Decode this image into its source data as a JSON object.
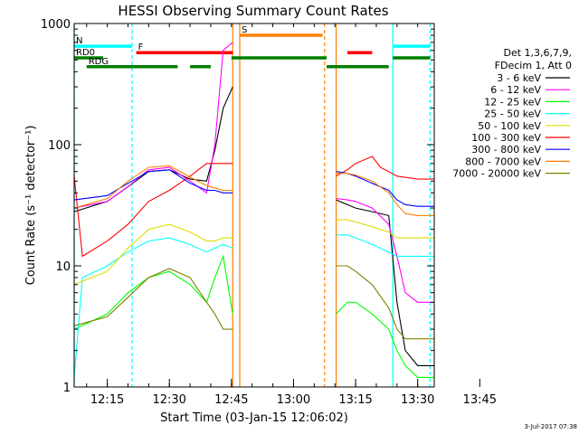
{
  "chart_data": {
    "type": "line",
    "title": "HESSI Observing Summary Count Rates",
    "xlabel": "Start Time (03-Jan-15 12:06:02)",
    "ylabel": "Count Rate (s⁻¹ detector⁻¹)",
    "yscale": "log",
    "ylim": [
      1,
      1000
    ],
    "xlim_minutes": [
      12.0,
      99.0
    ],
    "x_ticks": [
      {
        "m": 20,
        "label": "12:15"
      },
      {
        "m": 35,
        "label": "12:30"
      },
      {
        "m": 50,
        "label": "12:45"
      },
      {
        "m": 65,
        "label": "13:00"
      },
      {
        "m": 80,
        "label": "13:15"
      },
      {
        "m": 95,
        "label": "13:30"
      },
      {
        "m": 110,
        "label": "13:45"
      }
    ],
    "y_ticks": [
      {
        "v": 1,
        "label": "1"
      },
      {
        "v": 10,
        "label": "10"
      },
      {
        "v": 100,
        "label": "100"
      },
      {
        "v": 1000,
        "label": "1000"
      }
    ],
    "legend_header": [
      "Det 1,3,6,7,9,",
      "FDecim 1, Att 0"
    ],
    "timestamp": "3-Jul-2017 07:38",
    "gap_minutes": [
      50.3,
      75.3
    ],
    "series": [
      {
        "name": "3 - 6 keV",
        "color": "#000000",
        "points": [
          [
            12,
            28
          ],
          [
            20,
            34
          ],
          [
            25,
            45
          ],
          [
            30,
            60
          ],
          [
            35,
            62
          ],
          [
            40,
            52
          ],
          [
            44,
            50
          ],
          [
            46,
            90
          ],
          [
            48,
            200
          ],
          [
            50.3,
            300
          ],
          [
            75.3,
            35
          ],
          [
            78,
            32
          ],
          [
            80,
            30
          ],
          [
            84,
            28
          ],
          [
            88,
            26
          ],
          [
            90,
            5
          ],
          [
            92,
            2
          ],
          [
            95,
            1.5
          ],
          [
            99,
            1.5
          ]
        ]
      },
      {
        "name": "6 - 12 keV",
        "color": "#ff00ff",
        "points": [
          [
            12,
            30
          ],
          [
            20,
            34
          ],
          [
            25,
            45
          ],
          [
            30,
            62
          ],
          [
            35,
            65
          ],
          [
            40,
            50
          ],
          [
            44,
            40
          ],
          [
            46,
            100
          ],
          [
            48,
            600
          ],
          [
            50.3,
            700
          ],
          [
            75.3,
            36
          ],
          [
            78,
            35
          ],
          [
            80,
            34
          ],
          [
            84,
            30
          ],
          [
            88,
            22
          ],
          [
            90,
            12
          ],
          [
            92,
            6
          ],
          [
            95,
            5
          ],
          [
            99,
            5
          ]
        ]
      },
      {
        "name": "12 - 25 keV",
        "color": "#00ff00",
        "points": [
          [
            12,
            3
          ],
          [
            20,
            4
          ],
          [
            25,
            6
          ],
          [
            30,
            8
          ],
          [
            35,
            9
          ],
          [
            40,
            7
          ],
          [
            44,
            5
          ],
          [
            46,
            8
          ],
          [
            48,
            12
          ],
          [
            50.3,
            4
          ],
          [
            75.3,
            4
          ],
          [
            78,
            5
          ],
          [
            80,
            5
          ],
          [
            84,
            4
          ],
          [
            88,
            3
          ],
          [
            90,
            2
          ],
          [
            92,
            1.5
          ],
          [
            95,
            1.2
          ],
          [
            99,
            1.2
          ]
        ]
      },
      {
        "name": "25 - 50 keV",
        "color": "#00ffff",
        "points": [
          [
            12,
            1.2
          ],
          [
            14,
            8
          ],
          [
            20,
            10
          ],
          [
            25,
            13
          ],
          [
            30,
            16
          ],
          [
            35,
            17
          ],
          [
            40,
            15
          ],
          [
            44,
            13
          ],
          [
            46,
            14
          ],
          [
            48,
            15
          ],
          [
            50.3,
            14
          ],
          [
            75.3,
            18
          ],
          [
            78,
            18
          ],
          [
            80,
            17
          ],
          [
            84,
            15
          ],
          [
            88,
            13
          ],
          [
            90,
            12
          ],
          [
            92,
            12
          ],
          [
            95,
            12
          ],
          [
            99,
            12
          ]
        ]
      },
      {
        "name": "50 - 100 keV",
        "color": "#dddd00",
        "points": [
          [
            12,
            7
          ],
          [
            20,
            9
          ],
          [
            25,
            14
          ],
          [
            30,
            20
          ],
          [
            35,
            22
          ],
          [
            40,
            19
          ],
          [
            44,
            16
          ],
          [
            46,
            16
          ],
          [
            48,
            17
          ],
          [
            50.3,
            17
          ],
          [
            75.3,
            24
          ],
          [
            78,
            24
          ],
          [
            80,
            23
          ],
          [
            84,
            21
          ],
          [
            88,
            19
          ],
          [
            90,
            17
          ],
          [
            92,
            17
          ],
          [
            95,
            17
          ],
          [
            99,
            17
          ]
        ]
      },
      {
        "name": "100 - 300 keV",
        "color": "#ff0000",
        "points": [
          [
            12,
            55
          ],
          [
            14,
            12
          ],
          [
            20,
            16
          ],
          [
            25,
            22
          ],
          [
            30,
            34
          ],
          [
            35,
            42
          ],
          [
            40,
            55
          ],
          [
            44,
            70
          ],
          [
            46,
            70
          ],
          [
            48,
            70
          ],
          [
            50.3,
            70
          ],
          [
            75.3,
            55
          ],
          [
            78,
            62
          ],
          [
            80,
            70
          ],
          [
            84,
            80
          ],
          [
            86,
            65
          ],
          [
            88,
            60
          ],
          [
            90,
            55
          ],
          [
            95,
            52
          ],
          [
            99,
            52
          ]
        ]
      },
      {
        "name": "300 - 800 keV",
        "color": "#0000ff",
        "points": [
          [
            12,
            35
          ],
          [
            20,
            38
          ],
          [
            25,
            48
          ],
          [
            30,
            60
          ],
          [
            35,
            62
          ],
          [
            40,
            48
          ],
          [
            44,
            42
          ],
          [
            46,
            42
          ],
          [
            48,
            40
          ],
          [
            50.3,
            40
          ],
          [
            75.3,
            60
          ],
          [
            78,
            58
          ],
          [
            80,
            55
          ],
          [
            84,
            48
          ],
          [
            88,
            42
          ],
          [
            90,
            35
          ],
          [
            92,
            32
          ],
          [
            95,
            31
          ],
          [
            99,
            31
          ]
        ]
      },
      {
        "name": "800 - 7000 keV",
        "color": "#ff8000",
        "points": [
          [
            12,
            30
          ],
          [
            20,
            36
          ],
          [
            25,
            50
          ],
          [
            30,
            65
          ],
          [
            35,
            67
          ],
          [
            40,
            54
          ],
          [
            44,
            46
          ],
          [
            46,
            44
          ],
          [
            48,
            42
          ],
          [
            50.3,
            42
          ],
          [
            75.3,
            58
          ],
          [
            78,
            58
          ],
          [
            80,
            56
          ],
          [
            84,
            50
          ],
          [
            88,
            40
          ],
          [
            90,
            32
          ],
          [
            92,
            27
          ],
          [
            95,
            26
          ],
          [
            99,
            26
          ]
        ]
      },
      {
        "name": "7000 - 20000 keV",
        "color": "#808000",
        "points": [
          [
            12,
            3.2
          ],
          [
            20,
            3.8
          ],
          [
            25,
            5.5
          ],
          [
            30,
            8
          ],
          [
            35,
            9.5
          ],
          [
            40,
            8
          ],
          [
            44,
            5
          ],
          [
            46,
            4
          ],
          [
            48,
            3
          ],
          [
            50.3,
            3
          ],
          [
            75.3,
            10
          ],
          [
            78,
            10
          ],
          [
            80,
            9
          ],
          [
            84,
            7
          ],
          [
            88,
            4.5
          ],
          [
            90,
            3
          ],
          [
            92,
            2.5
          ],
          [
            95,
            2.5
          ],
          [
            99,
            2.5
          ]
        ]
      }
    ],
    "flag_bars": [
      {
        "label": "N",
        "color": "#00ffff",
        "level": 650,
        "segments": [
          [
            12,
            26
          ],
          [
            89,
            98
          ]
        ]
      },
      {
        "label": "F",
        "color": "#ff0000",
        "level": 575,
        "segments": [
          [
            27,
            50.3
          ],
          [
            78,
            84
          ]
        ]
      },
      {
        "label": "S",
        "color": "#ff8000",
        "level": 800,
        "segments": [
          [
            52,
            72
          ]
        ]
      },
      {
        "label": "RD0",
        "color": "#008000",
        "level": 520,
        "segments": [
          [
            12,
            19
          ],
          [
            50,
            73
          ],
          [
            89,
            98
          ]
        ]
      },
      {
        "label": "RDG",
        "color": "#008000",
        "level": 440,
        "segments": [
          [
            15,
            37
          ],
          [
            40,
            45
          ],
          [
            73,
            88
          ]
        ]
      }
    ],
    "vertical_markers": [
      {
        "m": 12,
        "color": "#00ffff",
        "style": "solid"
      },
      {
        "m": 26,
        "color": "#00ffff",
        "style": "dashed"
      },
      {
        "m": 50.3,
        "color": "#ff8000",
        "style": "solid"
      },
      {
        "m": 52,
        "color": "#ff8000",
        "style": "solid"
      },
      {
        "m": 72.5,
        "color": "#ff8000",
        "style": "dashed"
      },
      {
        "m": 75.3,
        "color": "#ff8000",
        "style": "solid"
      },
      {
        "m": 89,
        "color": "#00ffff",
        "style": "solid"
      },
      {
        "m": 98,
        "color": "#00ffff",
        "style": "dashed"
      }
    ]
  }
}
